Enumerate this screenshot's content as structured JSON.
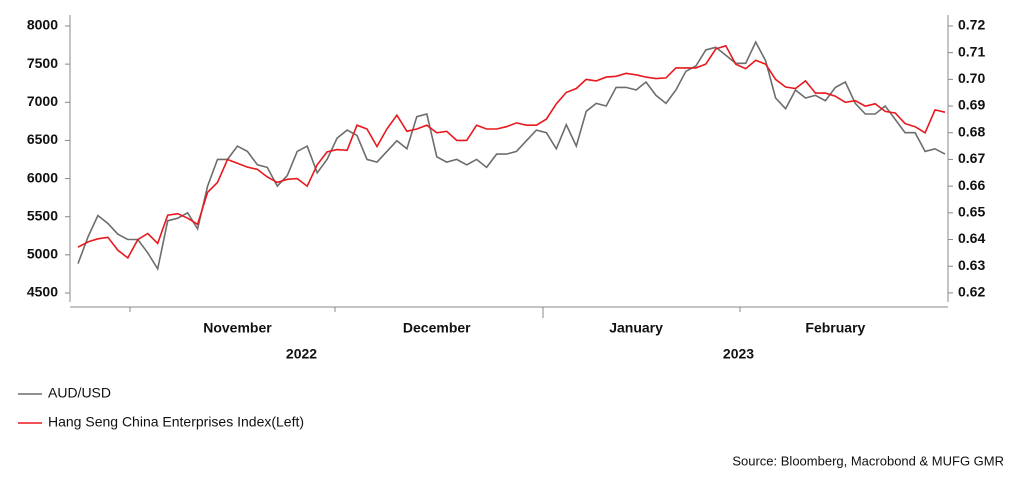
{
  "chart_data": {
    "type": "line",
    "source": "Source: Bloomberg, Macrobond & MUFG GMR",
    "categories": [
      null,
      null,
      null,
      null,
      null,
      null,
      null,
      null,
      null,
      null,
      null,
      null,
      null,
      null,
      null,
      null,
      "November",
      null,
      null,
      null,
      null,
      null,
      null,
      null,
      null,
      null,
      null,
      null,
      null,
      null,
      null,
      null,
      null,
      null,
      null,
      null,
      "December",
      null,
      null,
      null,
      null,
      null,
      null,
      null,
      null,
      null,
      null,
      null,
      null,
      null,
      null,
      null,
      null,
      null,
      null,
      null,
      "January",
      null,
      null,
      null,
      null,
      null,
      null,
      null,
      null,
      null,
      null,
      null,
      null,
      null,
      null,
      null,
      null,
      null,
      null,
      null,
      "February",
      null,
      null,
      null,
      null,
      null,
      null,
      null,
      null,
      null,
      null,
      null
    ],
    "x_groups": [
      "2022",
      "2023"
    ],
    "series": [
      {
        "name": "AUD/USD",
        "color": "#6d6d6d",
        "axis": "y2",
        "values": [
          0.631,
          0.641,
          0.649,
          0.646,
          0.642,
          0.64,
          0.64,
          0.635,
          0.629,
          0.647,
          0.648,
          0.65,
          0.644,
          0.66,
          0.67,
          0.67,
          0.675,
          0.673,
          0.668,
          0.667,
          0.66,
          0.664,
          0.673,
          0.675,
          0.665,
          0.67,
          0.678,
          0.681,
          0.679,
          0.67,
          0.669,
          0.673,
          0.677,
          0.674,
          0.686,
          0.687,
          0.671,
          0.669,
          0.67,
          0.668,
          0.67,
          0.667,
          0.672,
          0.672,
          0.673,
          0.677,
          0.681,
          0.68,
          0.674,
          0.683,
          0.675,
          0.688,
          0.691,
          0.69,
          0.697,
          0.697,
          0.696,
          0.699,
          0.694,
          0.691,
          0.696,
          0.703,
          0.705,
          0.711,
          0.712,
          0.709,
          0.706,
          0.706,
          0.714,
          0.707,
          0.693,
          0.689,
          0.696,
          0.693,
          0.694,
          0.692,
          0.697,
          0.699,
          0.691,
          0.687,
          0.687,
          0.69,
          0.685,
          0.68,
          0.68,
          0.673,
          0.674,
          0.672
        ]
      },
      {
        "name": "Hang Seng China Enterprises Index(Left)",
        "color": "#e8191e",
        "axis": "y",
        "values": [
          5100,
          5170,
          5210,
          5230,
          5060,
          4960,
          5200,
          5280,
          5150,
          5520,
          5540,
          5480,
          5400,
          5820,
          5950,
          6250,
          6200,
          6150,
          6120,
          6020,
          5950,
          5990,
          6000,
          5900,
          6180,
          6350,
          6380,
          6370,
          6700,
          6650,
          6420,
          6650,
          6830,
          6620,
          6650,
          6700,
          6600,
          6620,
          6500,
          6500,
          6700,
          6650,
          6650,
          6680,
          6730,
          6700,
          6700,
          6780,
          6980,
          7130,
          7180,
          7300,
          7280,
          7330,
          7340,
          7380,
          7360,
          7330,
          7310,
          7320,
          7450,
          7450,
          7450,
          7500,
          7700,
          7740,
          7500,
          7440,
          7550,
          7500,
          7300,
          7200,
          7180,
          7280,
          7120,
          7120,
          7080,
          7000,
          7020,
          6950,
          6980,
          6880,
          6860,
          6720,
          6680,
          6600,
          6900,
          6870
        ]
      }
    ],
    "ylim": [
      4382,
      8144
    ],
    "yticks": [
      4500,
      5000,
      5500,
      6000,
      6500,
      7000,
      7500,
      8000
    ],
    "y2lim": [
      0.6166,
      0.7241
    ],
    "y2ticks": [
      0.62,
      0.63,
      0.64,
      0.65,
      0.66,
      0.67,
      0.68,
      0.69,
      {
        "value": 0.7,
        "label": "0.70"
      },
      0.71,
      0.72
    ],
    "grid": false,
    "legend": "bottom-left"
  }
}
